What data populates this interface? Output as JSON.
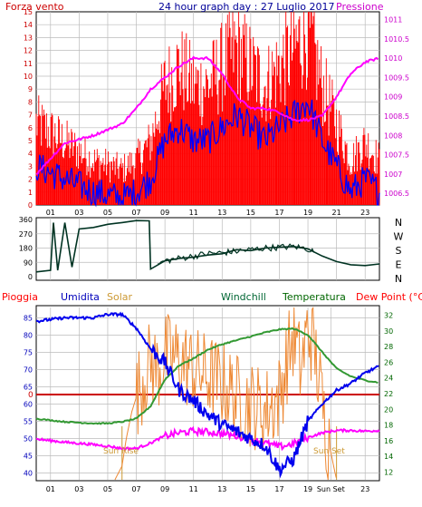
{
  "chart_data": [
    {
      "type": "line",
      "title": "24 hour graph day : 27 Luglio 2017",
      "left_axis_label": "Forza vento",
      "right_axis_label": "Pressione",
      "ylim_left": [
        0,
        15
      ],
      "ylim_right": [
        1006.2,
        1011.2
      ],
      "left_ticks": [
        "0",
        "1",
        "2",
        "3",
        "4",
        "5",
        "6",
        "7",
        "8",
        "9",
        "10",
        "11",
        "12",
        "13",
        "14",
        "15"
      ],
      "right_ticks": [
        "1006.5",
        "1007",
        "1007.5",
        "1008",
        "1008.5",
        "1009",
        "1009.5",
        "1010",
        "1010.5",
        "1011"
      ],
      "x_ticks": [
        "01",
        "03",
        "05",
        "07",
        "09",
        "11",
        "13",
        "15",
        "17",
        "19",
        "21",
        "23"
      ],
      "grid": true,
      "colors": {
        "gust": "#ff0000",
        "wind": "#0000ff",
        "pressure": "#ff00ff"
      },
      "series": [
        {
          "name": "Forza vento",
          "x": [
            0,
            2,
            4,
            6,
            7,
            8,
            9,
            10,
            11,
            12,
            13,
            14,
            15,
            16,
            17,
            18,
            19,
            20,
            21,
            22,
            23,
            24
          ],
          "values": [
            3,
            2,
            1,
            0.5,
            1,
            2,
            5,
            6,
            5,
            5,
            6,
            7,
            6,
            5,
            6,
            7,
            8,
            5,
            3,
            1,
            2,
            1
          ]
        },
        {
          "name": "Pressione",
          "x": [
            0,
            2,
            4,
            6,
            7,
            8,
            9,
            10,
            11,
            12,
            13,
            14,
            15,
            16,
            17,
            18,
            19,
            20,
            21,
            22,
            23,
            24
          ],
          "values": [
            1007,
            1007.8,
            1008,
            1008.3,
            1008.7,
            1009.2,
            1009.5,
            1009.8,
            1010,
            1010,
            1009.6,
            1009,
            1008.7,
            1008.7,
            1008.6,
            1008.4,
            1008.4,
            1008.5,
            1009,
            1009.6,
            1009.9,
            1010
          ]
        }
      ]
    },
    {
      "type": "line",
      "ylim": [
        0,
        360
      ],
      "left_ticks": [
        "0",
        "90",
        "180",
        "270",
        "360"
      ],
      "right_labels": [
        "N",
        "W",
        "S",
        "E",
        "N"
      ],
      "color": "#003322",
      "series": [
        {
          "name": "Direzione vento",
          "x": [
            0,
            1,
            1.2,
            1.5,
            2,
            2.5,
            3,
            4,
            5,
            6,
            7,
            7.9,
            8,
            9,
            10,
            11,
            12,
            13,
            14,
            15,
            16,
            17,
            18,
            19,
            20,
            21,
            22,
            23,
            24
          ],
          "values": [
            30,
            40,
            340,
            40,
            340,
            60,
            300,
            310,
            330,
            340,
            350,
            350,
            50,
            100,
            115,
            130,
            145,
            150,
            160,
            170,
            180,
            185,
            190,
            175,
            130,
            95,
            75,
            70,
            80
          ]
        }
      ]
    },
    {
      "type": "line",
      "labels": [
        "Pioggia",
        "Umidita",
        "Solar",
        "Windchill",
        "Temperatura",
        "Dew Point (°C)"
      ],
      "label_colors": [
        "#ff0000",
        "#0000bb",
        "#cc9933",
        "#006633",
        "#006600",
        "#ff0000"
      ],
      "ylim_left": [
        38,
        88
      ],
      "ylim_right": [
        11,
        33
      ],
      "left_ticks": [
        "40",
        "45",
        "50",
        "55",
        "60",
        "65",
        "70",
        "75",
        "80",
        "85"
      ],
      "right_ticks": [
        "12",
        "14",
        "16",
        "18",
        "20",
        "22",
        "24",
        "26",
        "28",
        "30",
        "32"
      ],
      "rain_label": "0",
      "x_ticks": [
        "01",
        "03",
        "05",
        "07",
        "09",
        "11",
        "13",
        "15",
        "17",
        "19",
        "Sun Set",
        "23"
      ],
      "annotations": [
        "Sun Rise",
        "Sun Set"
      ],
      "series": [
        {
          "name": "Umidita",
          "x": [
            0,
            2,
            4,
            5,
            6,
            7,
            8,
            9,
            10,
            11,
            12,
            13,
            14,
            15,
            16,
            17,
            18,
            19,
            20,
            21,
            22,
            23,
            24
          ],
          "values": [
            84,
            85,
            85,
            86,
            86,
            82,
            76,
            72,
            64,
            61,
            57,
            54,
            52,
            50,
            48,
            41,
            44,
            55,
            60,
            64,
            66,
            69,
            71
          ]
        },
        {
          "name": "Temperatura",
          "x": [
            0,
            2,
            4,
            5,
            6,
            7,
            8,
            9,
            10,
            11,
            12,
            13,
            14,
            15,
            16,
            17,
            18,
            19,
            20,
            21,
            22,
            23,
            24
          ],
          "values": [
            18.8,
            18.4,
            18.2,
            18.2,
            18.4,
            18.8,
            20.4,
            23.8,
            25.6,
            26.5,
            27.6,
            28.3,
            28.8,
            29.3,
            29.8,
            30.2,
            30.3,
            29.5,
            27.3,
            25.2,
            24.2,
            23.7,
            23.4
          ]
        },
        {
          "name": "Dew Point (°C)",
          "x": [
            0,
            2,
            4,
            5,
            6,
            7,
            8,
            9,
            10,
            11,
            12,
            13,
            14,
            15,
            16,
            17,
            18,
            19,
            20,
            21,
            22,
            23,
            24
          ],
          "values": [
            16.2,
            15.8,
            15.5,
            15.3,
            15.0,
            15.0,
            15.7,
            16.6,
            17.0,
            17.2,
            17.1,
            16.9,
            16.6,
            16.2,
            15.7,
            15.2,
            15.6,
            16.4,
            17.0,
            17.3,
            17.3,
            17.2,
            17.3
          ]
        },
        {
          "name": "Solar",
          "x": [
            0,
            5.5,
            6,
            6.3,
            6.7,
            7,
            7.5,
            8,
            8.5,
            9,
            10,
            11,
            12,
            13,
            14,
            15,
            16,
            17,
            17.5,
            18,
            18.5,
            19,
            19.5,
            20,
            20.3,
            21,
            24
          ],
          "values": [
            38,
            38,
            42,
            50,
            58,
            62,
            68,
            72,
            70,
            74,
            73,
            70,
            68,
            66,
            62,
            60,
            58,
            62,
            72,
            80,
            70,
            82,
            75,
            60,
            52,
            38,
            38
          ]
        }
      ]
    }
  ]
}
